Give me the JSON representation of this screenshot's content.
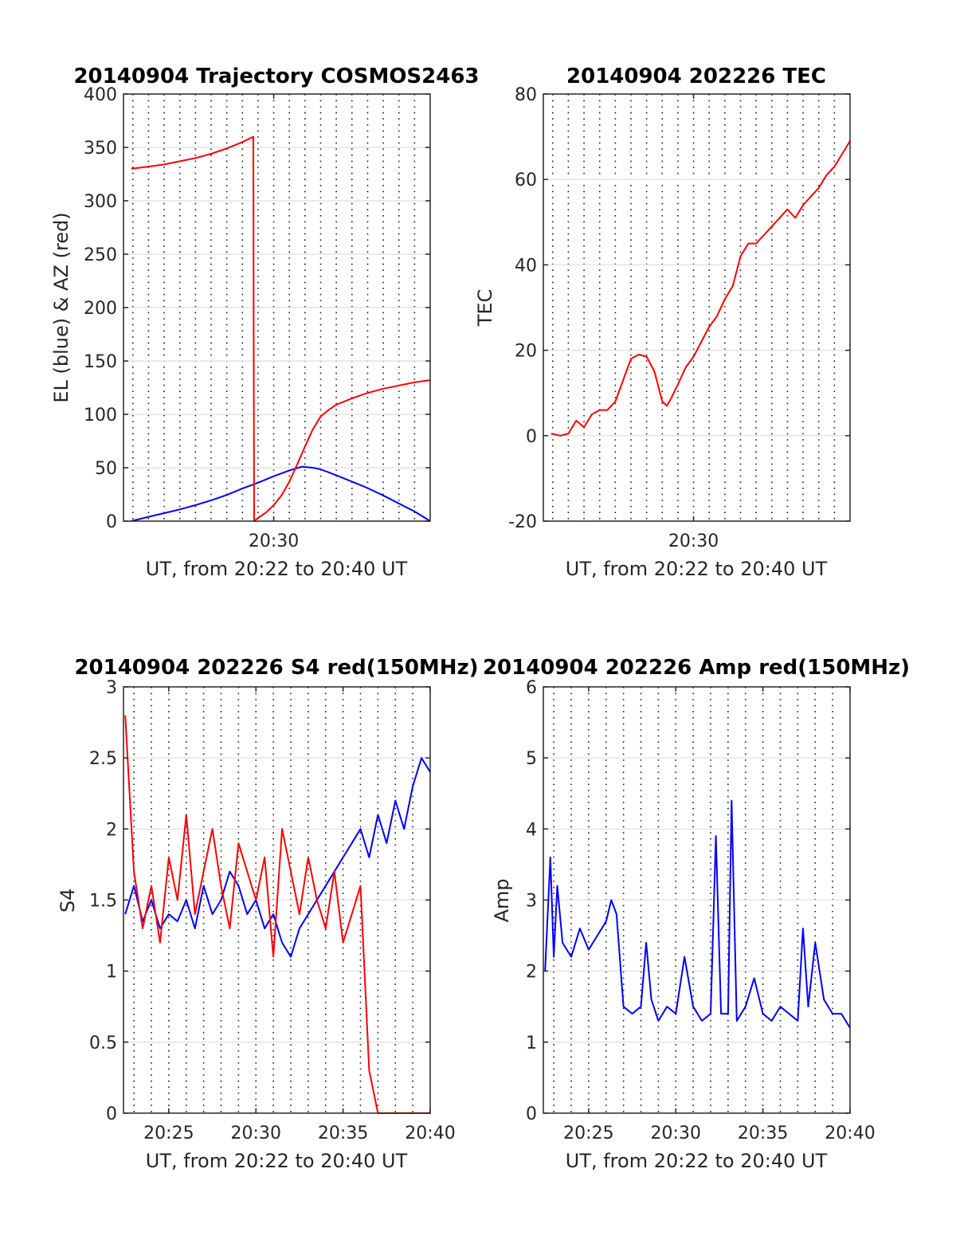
{
  "chart_data": [
    {
      "type": "line",
      "title": "20140904 Trajectory COSMOS2463",
      "xlabel": "UT, from 20:22 to 20:40 UT",
      "ylabel": "EL (blue) & AZ (red)",
      "xlim": [
        20.4,
        40.0
      ],
      "ylim": [
        0,
        400
      ],
      "x_ticks": [
        {
          "v": 30,
          "label": "20:30"
        }
      ],
      "y_ticks": [
        {
          "v": 0,
          "label": "0"
        },
        {
          "v": 50,
          "label": "50"
        },
        {
          "v": 100,
          "label": "100"
        },
        {
          "v": 150,
          "label": "150"
        },
        {
          "v": 200,
          "label": "200"
        },
        {
          "v": 250,
          "label": "250"
        },
        {
          "v": 300,
          "label": "300"
        },
        {
          "v": 350,
          "label": "350"
        },
        {
          "v": 400,
          "label": "400"
        }
      ],
      "grid": "dotted",
      "series": [
        {
          "color": "#0000ff",
          "x": [
            20.9,
            22,
            23,
            24,
            25,
            26,
            27,
            28,
            29,
            30,
            31,
            31.8,
            32.5,
            33,
            34,
            35,
            36,
            37,
            38,
            39,
            40
          ],
          "y": [
            0,
            4,
            7.5,
            11,
            15,
            19.5,
            24.5,
            30.5,
            36,
            42,
            47.5,
            51,
            50,
            48.5,
            43,
            37,
            31,
            24,
            16.5,
            9,
            0
          ]
        },
        {
          "color": "#ff0000",
          "x": [
            20.9,
            22,
            23,
            24,
            25,
            26,
            27,
            28,
            28.7,
            28.72,
            28.75,
            29,
            29.5,
            30,
            30.5,
            31,
            31.5,
            32,
            32.5,
            33,
            33.5,
            34,
            35,
            36,
            37,
            38,
            39,
            40
          ],
          "y": [
            330,
            332,
            334,
            337,
            340,
            344,
            349,
            355,
            360,
            180,
            0,
            3,
            8,
            15,
            24,
            37,
            53,
            70,
            86,
            98,
            104,
            109,
            115,
            120,
            124,
            127,
            130,
            132
          ]
        }
      ]
    },
    {
      "type": "line",
      "title": "20140904 202226 TEC",
      "xlabel": "UT, from 20:22 to 20:40 UT",
      "ylabel": "TEC",
      "xlim": [
        20.4,
        40.0
      ],
      "ylim": [
        -20,
        80
      ],
      "x_ticks": [
        {
          "v": 30,
          "label": "20:30"
        }
      ],
      "y_ticks": [
        {
          "v": -20,
          "label": "-20"
        },
        {
          "v": 0,
          "label": "0"
        },
        {
          "v": 20,
          "label": "20"
        },
        {
          "v": 40,
          "label": "40"
        },
        {
          "v": 60,
          "label": "60"
        },
        {
          "v": 80,
          "label": "80"
        }
      ],
      "grid": "dotted",
      "series": [
        {
          "color": "#ff0000",
          "x": [
            20.9,
            21.5,
            22,
            22.5,
            23,
            23.5,
            24,
            24.5,
            25,
            25.5,
            26,
            26.5,
            27,
            27.5,
            28,
            28.3,
            28.6,
            29,
            29.5,
            30,
            30.5,
            31,
            31.5,
            32,
            32.5,
            33,
            33.5,
            34,
            34.5,
            35,
            35.5,
            36,
            36.5,
            37,
            37.5,
            38,
            38.5,
            39,
            39.5,
            40
          ],
          "y": [
            0.5,
            0,
            0.5,
            3.5,
            2,
            5,
            6,
            6,
            8,
            13,
            18,
            19,
            18.5,
            15,
            8,
            7,
            9,
            12,
            16,
            18.5,
            22,
            25.5,
            28,
            32,
            35,
            42,
            45,
            45,
            47,
            49,
            51,
            53,
            51,
            54,
            56,
            58,
            61,
            63,
            66,
            69
          ]
        }
      ]
    },
    {
      "type": "line",
      "title": "20140904 202226 S4 red(150MHz)",
      "xlabel": "UT, from 20:22 to 20:40 UT",
      "ylabel": "S4",
      "xlim": [
        22.4,
        40.0
      ],
      "ylim": [
        0,
        3
      ],
      "x_ticks": [
        {
          "v": 25,
          "label": "20:25"
        },
        {
          "v": 30,
          "label": "20:30"
        },
        {
          "v": 35,
          "label": "20:35"
        },
        {
          "v": 40,
          "label": "20:40"
        }
      ],
      "y_ticks": [
        {
          "v": 0,
          "label": "0"
        },
        {
          "v": 0.5,
          "label": "0.5"
        },
        {
          "v": 1,
          "label": "1"
        },
        {
          "v": 1.5,
          "label": "1.5"
        },
        {
          "v": 2,
          "label": "2"
        },
        {
          "v": 2.5,
          "label": "2.5"
        },
        {
          "v": 3,
          "label": "3"
        }
      ],
      "grid": "dotted",
      "series": [
        {
          "color": "#0000ff",
          "x": [
            22.5,
            23,
            23.5,
            24,
            24.5,
            25,
            25.5,
            26,
            26.5,
            27,
            27.5,
            28,
            28.5,
            29,
            29.5,
            30,
            30.5,
            31,
            31.5,
            32,
            32.5,
            33,
            33.5,
            34,
            34.5,
            35,
            35.5,
            36,
            36.5,
            37,
            37.5,
            38,
            38.5,
            39,
            39.5,
            40
          ],
          "y": [
            1.4,
            1.6,
            1.35,
            1.5,
            1.3,
            1.4,
            1.35,
            1.5,
            1.3,
            1.6,
            1.4,
            1.5,
            1.7,
            1.6,
            1.4,
            1.5,
            1.3,
            1.4,
            1.2,
            1.1,
            1.3,
            1.4,
            1.5,
            1.6,
            1.7,
            1.8,
            1.9,
            2.0,
            1.8,
            2.1,
            1.9,
            2.2,
            2.0,
            2.3,
            2.5,
            2.4
          ]
        },
        {
          "color": "#ff0000",
          "x": [
            22.5,
            23,
            23.5,
            24,
            24.5,
            25,
            25.5,
            26,
            26.5,
            27,
            27.5,
            28,
            28.5,
            29,
            29.5,
            30,
            30.5,
            31,
            31.5,
            32,
            32.5,
            33,
            33.5,
            34,
            34.5,
            35,
            35.5,
            36,
            36.5,
            37,
            37.5,
            38,
            38.5,
            39,
            39.5,
            40
          ],
          "y": [
            2.8,
            1.7,
            1.3,
            1.6,
            1.2,
            1.8,
            1.5,
            2.1,
            1.4,
            1.7,
            2.0,
            1.6,
            1.3,
            1.9,
            1.7,
            1.5,
            1.8,
            1.1,
            2.0,
            1.7,
            1.4,
            1.8,
            1.5,
            1.3,
            1.7,
            1.2,
            1.4,
            1.6,
            0.3,
            0,
            0,
            0,
            0,
            0,
            0,
            0
          ]
        }
      ]
    },
    {
      "type": "line",
      "title": "20140904 202226 Amp red(150MHz)",
      "xlabel": "UT, from 20:22 to 20:40 UT",
      "ylabel": "Amp",
      "xlim": [
        22.4,
        40.0
      ],
      "ylim": [
        0,
        6
      ],
      "x_ticks": [
        {
          "v": 25,
          "label": "20:25"
        },
        {
          "v": 30,
          "label": "20:30"
        },
        {
          "v": 35,
          "label": "20:35"
        },
        {
          "v": 40,
          "label": "20:40"
        }
      ],
      "y_ticks": [
        {
          "v": 0,
          "label": "0"
        },
        {
          "v": 1,
          "label": "1"
        },
        {
          "v": 2,
          "label": "2"
        },
        {
          "v": 3,
          "label": "3"
        },
        {
          "v": 4,
          "label": "4"
        },
        {
          "v": 5,
          "label": "5"
        },
        {
          "v": 6,
          "label": "6"
        }
      ],
      "grid": "dotted",
      "series": [
        {
          "color": "#0000ff",
          "x": [
            22.5,
            22.8,
            23.0,
            23.2,
            23.5,
            24.0,
            24.5,
            25.0,
            25.5,
            26.0,
            26.3,
            26.6,
            27.0,
            27.5,
            28.0,
            28.3,
            28.6,
            29.0,
            29.5,
            30.0,
            30.5,
            31.0,
            31.5,
            32.0,
            32.3,
            32.6,
            33.0,
            33.2,
            33.5,
            34.0,
            34.5,
            35.0,
            35.5,
            36.0,
            36.5,
            37.0,
            37.3,
            37.6,
            38.0,
            38.5,
            39.0,
            39.5,
            40.0
          ],
          "y": [
            2.0,
            3.6,
            2.2,
            3.2,
            2.4,
            2.2,
            2.6,
            2.3,
            2.5,
            2.7,
            3.0,
            2.8,
            1.5,
            1.4,
            1.5,
            2.4,
            1.6,
            1.3,
            1.5,
            1.4,
            2.2,
            1.5,
            1.3,
            1.4,
            3.9,
            1.4,
            1.4,
            4.4,
            1.3,
            1.5,
            1.9,
            1.4,
            1.3,
            1.5,
            1.4,
            1.3,
            2.6,
            1.5,
            2.4,
            1.6,
            1.4,
            1.4,
            1.2
          ]
        }
      ]
    }
  ]
}
